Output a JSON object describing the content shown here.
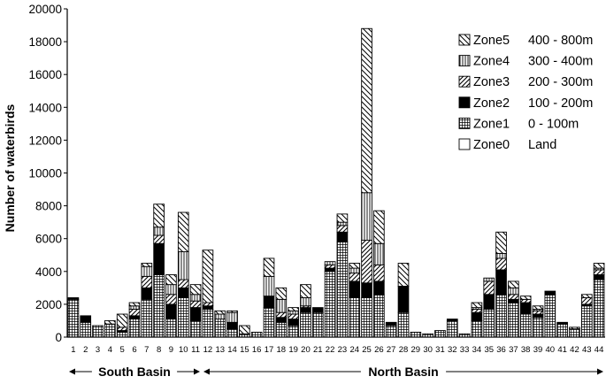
{
  "chart_data": {
    "type": "bar",
    "stacked": true,
    "title": "",
    "ylabel": "Number of waterbirds",
    "xlabel": "",
    "ylim": [
      0,
      20000
    ],
    "yticks": [
      "0",
      "2000",
      "4000",
      "6000",
      "8000",
      "10000",
      "12000",
      "14000",
      "16000",
      "18000",
      "20000"
    ],
    "grid": false,
    "legend_position": "top-right",
    "categories": [
      "1",
      "2",
      "3",
      "4",
      "5",
      "6",
      "7",
      "8",
      "9",
      "10",
      "11",
      "12",
      "13",
      "14",
      "15",
      "16",
      "17",
      "18",
      "19",
      "20",
      "21",
      "22",
      "23",
      "24",
      "25",
      "26",
      "27",
      "28",
      "29",
      "30",
      "31",
      "32",
      "33",
      "34",
      "35",
      "36",
      "37",
      "38",
      "39",
      "40",
      "41",
      "42",
      "43",
      "44"
    ],
    "series": [
      {
        "name": "Zone0",
        "range": "Land",
        "pattern": "empty",
        "values": [
          0,
          0,
          0,
          0,
          0,
          0,
          0,
          0,
          0,
          0,
          0,
          0,
          0,
          0,
          0,
          0,
          0,
          0,
          0,
          0,
          0,
          0,
          0,
          0,
          0,
          0,
          0,
          0,
          0,
          0,
          0,
          0,
          0,
          0,
          0,
          0,
          0,
          0,
          0,
          0,
          0,
          0,
          0,
          0
        ]
      },
      {
        "name": "Zone1",
        "range": "0 - 100m",
        "pattern": "grid",
        "values": [
          2300,
          900,
          700,
          800,
          300,
          1100,
          2300,
          3800,
          1100,
          2400,
          1000,
          1700,
          1100,
          500,
          200,
          300,
          1800,
          900,
          700,
          1500,
          1500,
          4000,
          5800,
          2400,
          2400,
          2600,
          700,
          1500,
          300,
          200,
          400,
          1000,
          200,
          1000,
          1700,
          2600,
          2100,
          1400,
          1200,
          2600,
          800,
          500,
          1900,
          3500
        ]
      },
      {
        "name": "Zone2",
        "range": "100 - 200m",
        "pattern": "solid",
        "values": [
          100,
          400,
          0,
          0,
          100,
          200,
          700,
          1900,
          900,
          600,
          800,
          200,
          0,
          400,
          0,
          0,
          700,
          300,
          400,
          300,
          300,
          200,
          600,
          1000,
          900,
          800,
          200,
          1600,
          0,
          0,
          0,
          100,
          0,
          500,
          900,
          1500,
          200,
          700,
          200,
          200,
          100,
          0,
          100,
          300
        ]
      },
      {
        "name": "Zone3",
        "range": "200 - 300m",
        "pattern": "diagonal",
        "values": [
          0,
          0,
          0,
          0,
          200,
          400,
          700,
          500,
          600,
          500,
          400,
          200,
          0,
          0,
          0,
          0,
          0,
          300,
          300,
          100,
          0,
          200,
          400,
          500,
          2600,
          1000,
          0,
          0,
          0,
          0,
          0,
          0,
          0,
          200,
          800,
          700,
          300,
          200,
          200,
          0,
          0,
          0,
          400,
          300
        ]
      },
      {
        "name": "Zone4",
        "range": "300 - 400m",
        "pattern": "vertical",
        "values": [
          0,
          0,
          0,
          0,
          0,
          200,
          600,
          500,
          600,
          1700,
          400,
          0,
          300,
          600,
          0,
          0,
          1200,
          800,
          200,
          500,
          0,
          200,
          200,
          300,
          2900,
          1300,
          0,
          0,
          0,
          0,
          0,
          0,
          0,
          100,
          200,
          300,
          400,
          0,
          100,
          0,
          0,
          0,
          0,
          100
        ]
      },
      {
        "name": "Zone5",
        "range": "400 - 800m",
        "pattern": "backdiagonal",
        "values": [
          0,
          0,
          0,
          200,
          800,
          200,
          200,
          1400,
          600,
          2400,
          600,
          3200,
          200,
          100,
          500,
          0,
          1100,
          700,
          200,
          800,
          0,
          0,
          500,
          300,
          10000,
          2000,
          0,
          1400,
          0,
          0,
          0,
          0,
          0,
          300,
          0,
          1300,
          400,
          200,
          200,
          0,
          0,
          100,
          200,
          300
        ]
      }
    ],
    "regions": [
      {
        "label": "South Basin",
        "from": "1",
        "to": "11"
      },
      {
        "label": "North Basin",
        "from": "12",
        "to": "44"
      }
    ]
  }
}
